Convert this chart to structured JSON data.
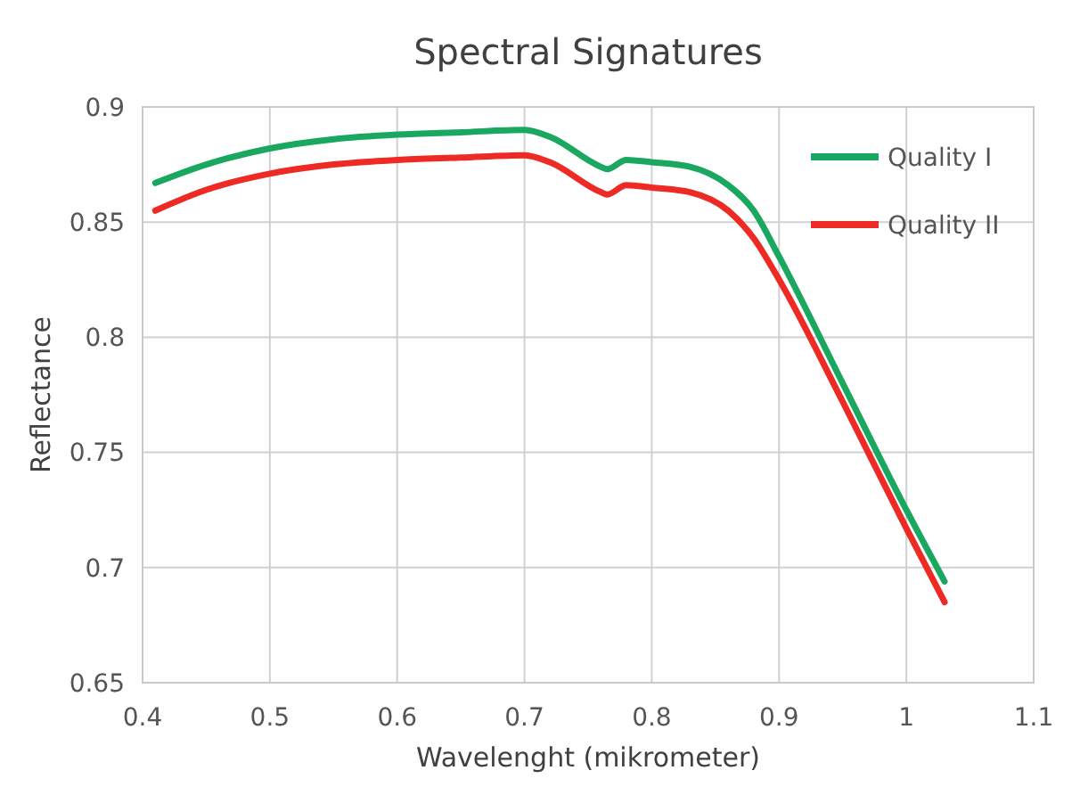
{
  "chart_data": {
    "type": "line",
    "title": "Spectral Signatures",
    "xlabel": "Wavelenght (mikrometer)",
    "ylabel": "Reflectance",
    "x": [
      0.41,
      0.45,
      0.5,
      0.55,
      0.6,
      0.65,
      0.7,
      0.72,
      0.76,
      0.765,
      0.78,
      0.8,
      0.83,
      0.86,
      0.88,
      0.9,
      0.95,
      1.0,
      1.03
    ],
    "series": [
      {
        "name": "Quality I",
        "color": "#1aa760",
        "values": [
          0.867,
          0.875,
          0.882,
          0.886,
          0.888,
          0.889,
          0.89,
          0.887,
          0.874,
          0.873,
          0.877,
          0.876,
          0.874,
          0.866,
          0.855,
          0.835,
          0.78,
          0.725,
          0.694
        ]
      },
      {
        "name": "Quality II",
        "color": "#ee2a24",
        "values": [
          0.855,
          0.864,
          0.871,
          0.875,
          0.877,
          0.878,
          0.879,
          0.876,
          0.863,
          0.862,
          0.866,
          0.865,
          0.863,
          0.855,
          0.843,
          0.825,
          0.772,
          0.717,
          0.685
        ]
      }
    ],
    "xlim": [
      0.4,
      1.1
    ],
    "xticks": [
      0.4,
      0.5,
      0.6,
      0.7,
      0.8,
      0.9,
      1,
      1.1
    ],
    "ylim": [
      0.65,
      0.9
    ],
    "yticks": [
      0.65,
      0.7,
      0.75,
      0.8,
      0.85,
      0.9
    ],
    "grid": true,
    "legend": "top right",
    "marker": "none",
    "line_style": "solid"
  }
}
